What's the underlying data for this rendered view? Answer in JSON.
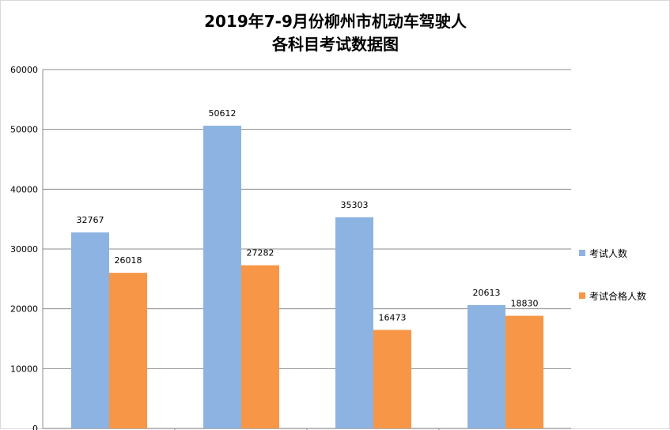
{
  "chart_data": {
    "type": "bar",
    "title_lines": [
      "2019年7-9月份柳州市机动车驾驶人",
      "各科目考试数据图"
    ],
    "categories": [
      "",
      "",
      "",
      ""
    ],
    "series": [
      {
        "name": "考试人数",
        "color": "#8db3e2",
        "values": [
          32767,
          50612,
          35303,
          20613
        ]
      },
      {
        "name": "考试合格人数",
        "color": "#f79646",
        "values": [
          26018,
          27282,
          16473,
          18830
        ]
      }
    ],
    "ylim": [
      0,
      60000
    ],
    "yticks": [
      0,
      10000,
      20000,
      30000,
      40000,
      50000,
      60000
    ],
    "grid": true,
    "legend_position": "right"
  }
}
